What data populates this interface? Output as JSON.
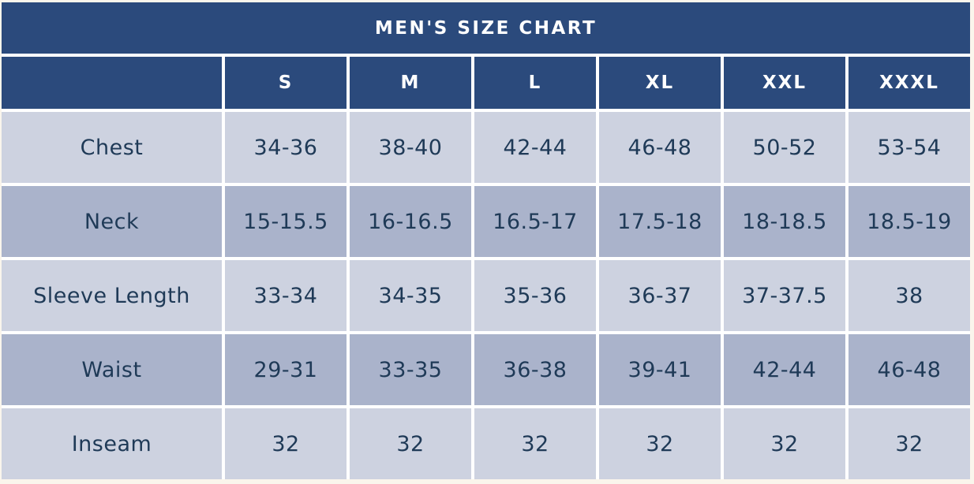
{
  "title": "MEN'S SIZE CHART",
  "columns": [
    "S",
    "M",
    "L",
    "XL",
    "XXL",
    "XXXL"
  ],
  "rows": [
    {
      "label": "Chest",
      "values": [
        "34-36",
        "38-40",
        "42-44",
        "46-48",
        "50-52",
        "53-54"
      ]
    },
    {
      "label": "Neck",
      "values": [
        "15-15.5",
        "16-16.5",
        "16.5-17",
        "17.5-18",
        "18-18.5",
        "18.5-19"
      ]
    },
    {
      "label": "Sleeve Length",
      "values": [
        "33-34",
        "34-35",
        "35-36",
        "36-37",
        "37-37.5",
        "38"
      ]
    },
    {
      "label": "Waist",
      "values": [
        "29-31",
        "33-35",
        "36-38",
        "39-41",
        "42-44",
        "46-48"
      ]
    },
    {
      "label": "Inseam",
      "values": [
        "32",
        "32",
        "32",
        "32",
        "32",
        "32"
      ]
    }
  ],
  "colors": {
    "header_bg": "#2b4a7c",
    "header_text": "#ffffff",
    "row_light_bg": "#cdd2e0",
    "row_dark_bg": "#aab3cb",
    "cell_text": "#1f3a57",
    "gridline": "#ffffff",
    "page_bg": "#faf5ec"
  },
  "chart_data": {
    "type": "table",
    "title": "MEN'S SIZE CHART",
    "columns": [
      "",
      "S",
      "M",
      "L",
      "XL",
      "XXL",
      "XXXL"
    ],
    "rows": [
      [
        "Chest",
        "34-36",
        "38-40",
        "42-44",
        "46-48",
        "50-52",
        "53-54"
      ],
      [
        "Neck",
        "15-15.5",
        "16-16.5",
        "16.5-17",
        "17.5-18",
        "18-18.5",
        "18.5-19"
      ],
      [
        "Sleeve Length",
        "33-34",
        "34-35",
        "35-36",
        "36-37",
        "37-37.5",
        "38"
      ],
      [
        "Waist",
        "29-31",
        "33-35",
        "36-38",
        "39-41",
        "42-44",
        "46-48"
      ],
      [
        "Inseam",
        "32",
        "32",
        "32",
        "32",
        "32",
        "32"
      ]
    ]
  }
}
